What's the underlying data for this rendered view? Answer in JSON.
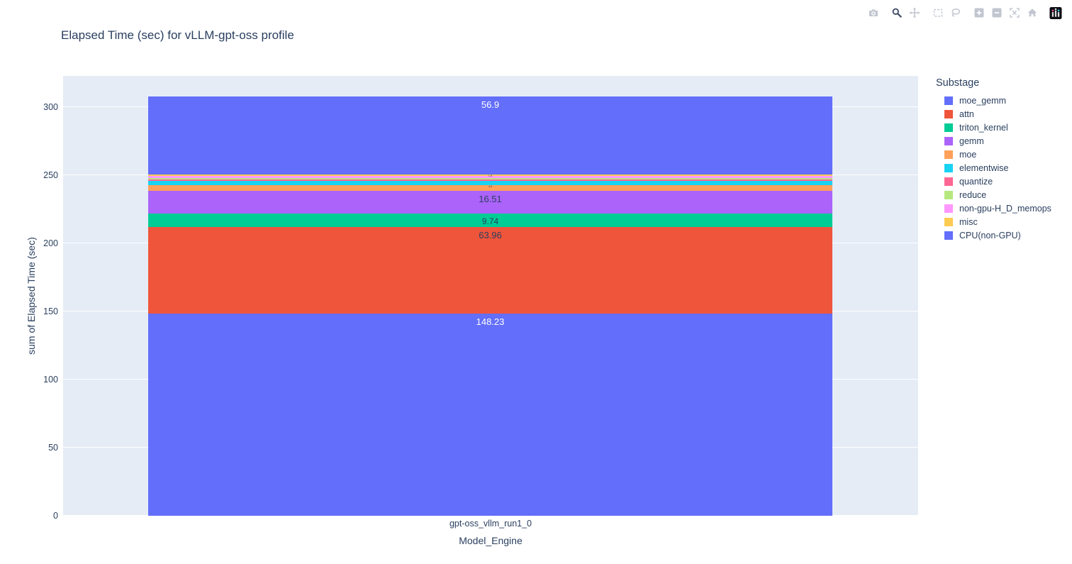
{
  "header": {
    "title": "Elapsed Time (sec) for vLLM-gpt-oss profile"
  },
  "modebar": {
    "icons": [
      "camera",
      "zoom",
      "pan",
      "box-select",
      "lasso",
      "zoom-in",
      "zoom-out",
      "autoscale",
      "home",
      "plotly-logo"
    ],
    "active": "zoom"
  },
  "chart_data": {
    "type": "bar",
    "stacked": true,
    "title": "Elapsed Time (sec) for vLLM-gpt-oss profile",
    "xlabel": "Model_Engine",
    "ylabel": "sum of Elapsed Time (sec)",
    "categories": [
      "gpt-oss_vllm_run1_0"
    ],
    "ylim": [
      0,
      323
    ],
    "yticks": [
      0,
      50,
      100,
      150,
      200,
      250,
      300
    ],
    "grid": "horizontal-white",
    "plot_bgcolor": "#E5ECF6",
    "legend_title": "Substage",
    "legend_position": "right",
    "series": [
      {
        "name": "moe_gemm",
        "values": [
          148.23
        ],
        "color": "#636EFA",
        "label": "148.23",
        "label_color": "#ffffff",
        "label_size": 13
      },
      {
        "name": "attn",
        "values": [
          63.96
        ],
        "color": "#EF553B",
        "label": "63.96",
        "label_color": "#2a3f5f",
        "label_size": 13
      },
      {
        "name": "triton_kernel",
        "values": [
          9.74
        ],
        "color": "#00CC96",
        "label": "9.74",
        "label_color": "#2a3f5f",
        "label_size": 12
      },
      {
        "name": "gemm",
        "values": [
          16.51
        ],
        "color": "#AB63FA",
        "label": "16.51",
        "label_color": "#2a3f5f",
        "label_size": 13
      },
      {
        "name": "moe",
        "values": [
          4.5
        ],
        "color": "#FFA15A",
        "label": "4.5",
        "label_color": "#2a3f5f",
        "label_size": 4
      },
      {
        "name": "elementwise",
        "values": [
          3.1
        ],
        "color": "#19D3F3",
        "label": "",
        "label_color": "#2a3f5f",
        "label_size": 0
      },
      {
        "name": "quantize",
        "values": [
          0.8
        ],
        "color": "#FF6692",
        "label": "",
        "label_color": "#2a3f5f",
        "label_size": 0
      },
      {
        "name": "reduce",
        "values": [
          1.1
        ],
        "color": "#B6E880",
        "label": "",
        "label_color": "#2a3f5f",
        "label_size": 0
      },
      {
        "name": "non-gpu-H_D_memops",
        "values": [
          1.4
        ],
        "color": "#FF97FF",
        "label": "",
        "label_color": "#2a3f5f",
        "label_size": 0
      },
      {
        "name": "misc",
        "values": [
          1.5
        ],
        "color": "#FECB52",
        "label": "1.5",
        "label_color": "#2a3f5f",
        "label_size": 4
      },
      {
        "name": "CPU(non-GPU)",
        "values": [
          56.9
        ],
        "color": "#636EFA",
        "label": "56.9",
        "label_color": "#ffffff",
        "label_size": 13
      }
    ]
  }
}
